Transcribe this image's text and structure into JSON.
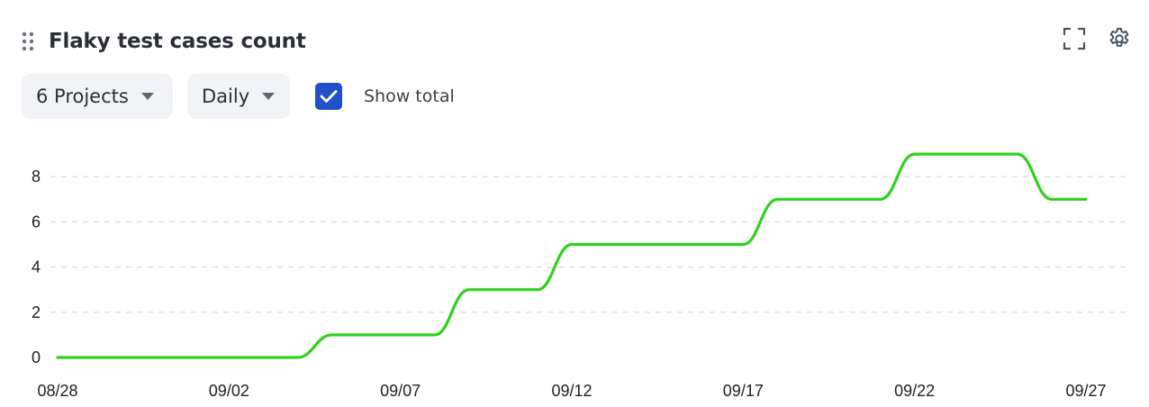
{
  "widget": {
    "title": "Flaky test cases count",
    "icons": {
      "drag": "drag-handle-icon",
      "fullscreen": "fullscreen-icon",
      "settings": "gear-icon"
    }
  },
  "filters": {
    "projects_label": "6 Projects",
    "interval_label": "Daily",
    "show_total_checked": true,
    "show_total_label": "Show total"
  },
  "colors": {
    "line": "#2fd11c",
    "checkbox": "#2250c8",
    "grid": "#d9d9d9"
  },
  "chart_data": {
    "type": "line",
    "title": "",
    "xlabel": "",
    "ylabel": "",
    "x": [
      "08/28",
      "08/29",
      "08/30",
      "08/31",
      "09/01",
      "09/02",
      "09/03",
      "09/04",
      "09/05",
      "09/06",
      "09/07",
      "09/08",
      "09/09",
      "09/10",
      "09/11",
      "09/12",
      "09/13",
      "09/14",
      "09/15",
      "09/16",
      "09/17",
      "09/18",
      "09/19",
      "09/20",
      "09/21",
      "09/22",
      "09/23",
      "09/24",
      "09/25",
      "09/26",
      "09/27"
    ],
    "x_tick_labels": [
      "08/28",
      "09/02",
      "09/07",
      "09/12",
      "09/17",
      "09/22",
      "09/27"
    ],
    "y_ticks": [
      0,
      2,
      4,
      6,
      8
    ],
    "ylim": [
      0,
      9.4
    ],
    "grid": true,
    "legend": "none",
    "series": [
      {
        "values": [
          0,
          0,
          0,
          0,
          0,
          0,
          0,
          0,
          1,
          1,
          1,
          1,
          3,
          3,
          3,
          5,
          5,
          5,
          5,
          5,
          5,
          7,
          7,
          7,
          7,
          9,
          9,
          9,
          9,
          7,
          7
        ]
      }
    ]
  }
}
